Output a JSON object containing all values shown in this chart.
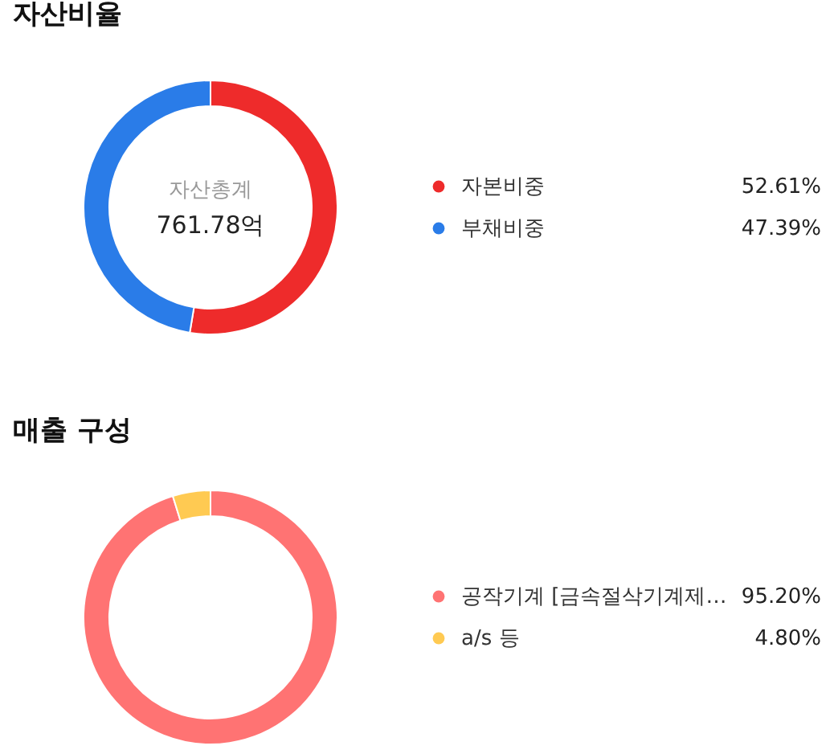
{
  "chart_data": [
    {
      "type": "donut",
      "title": "자산비율",
      "categories": [
        "자본비중",
        "부채비중"
      ],
      "values": [
        52.61,
        47.39
      ],
      "colors": [
        "#ee2b2b",
        "#2a7ce8"
      ],
      "value_labels": [
        "52.61%",
        "47.39%"
      ],
      "annotations": [
        "자산총계",
        "761.78억"
      ],
      "legend": "right"
    },
    {
      "type": "donut",
      "title": "매출 구성",
      "categories": [
        "공작기계 [금속절삭기계제…",
        "a/s 등"
      ],
      "values": [
        95.2,
        4.8
      ],
      "colors": [
        "#ff7373",
        "#ffca52"
      ],
      "value_labels": [
        "95.20%",
        "4.80%"
      ],
      "legend": "right"
    }
  ]
}
